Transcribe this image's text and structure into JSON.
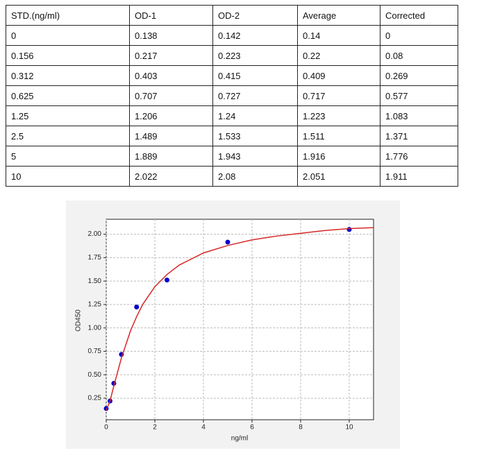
{
  "table": {
    "header": [
      "STD.(ng/ml)",
      "OD-1",
      "OD-2",
      "Average",
      "Corrected"
    ],
    "rows": [
      [
        0,
        0.138,
        0.142,
        0.14,
        0
      ],
      [
        0.156,
        0.217,
        0.223,
        0.22,
        0.08
      ],
      [
        0.312,
        0.403,
        0.415,
        0.409,
        0.269
      ],
      [
        0.625,
        0.707,
        0.727,
        0.717,
        0.577
      ],
      [
        1.25,
        1.206,
        1.24,
        1.223,
        1.083
      ],
      [
        2.5,
        1.489,
        1.533,
        1.511,
        1.371
      ],
      [
        5,
        1.889,
        1.943,
        1.916,
        1.776
      ],
      [
        10,
        2.022,
        2.08,
        2.051,
        1.911
      ]
    ]
  },
  "chart_data": {
    "type": "scatter",
    "xlabel": "ng/ml",
    "ylabel": "OD450",
    "x": [
      0,
      0.156,
      0.312,
      0.625,
      1.25,
      2.5,
      5,
      10
    ],
    "series": [
      {
        "type": "scatter",
        "color": "#0000cc",
        "values": [
          0.14,
          0.22,
          0.409,
          0.717,
          1.223,
          1.511,
          1.916,
          2.051
        ]
      },
      {
        "type": "line",
        "color": "#d62728",
        "x": [
          0,
          0.156,
          0.312,
          0.625,
          1,
          1.25,
          1.5,
          2,
          2.5,
          3,
          4,
          5,
          6,
          7,
          8,
          9,
          10,
          11
        ],
        "values": [
          0.12,
          0.22,
          0.38,
          0.68,
          0.97,
          1.12,
          1.25,
          1.44,
          1.57,
          1.67,
          1.8,
          1.88,
          1.94,
          1.98,
          2.01,
          2.04,
          2.06,
          2.07
        ]
      }
    ],
    "xlim": [
      0,
      11
    ],
    "ylim": [
      0.02,
      2.16
    ],
    "xticks": [
      0,
      2,
      4,
      6,
      8,
      10
    ],
    "yticks": [
      0.25,
      {
        "value": 0.5,
        "label": "0.50"
      },
      0.75,
      {
        "value": 1,
        "label": "1.00"
      },
      1.25,
      {
        "value": 1.5,
        "label": "1.50"
      },
      1.75,
      {
        "value": 2,
        "label": "2.00"
      }
    ],
    "grid": true
  }
}
